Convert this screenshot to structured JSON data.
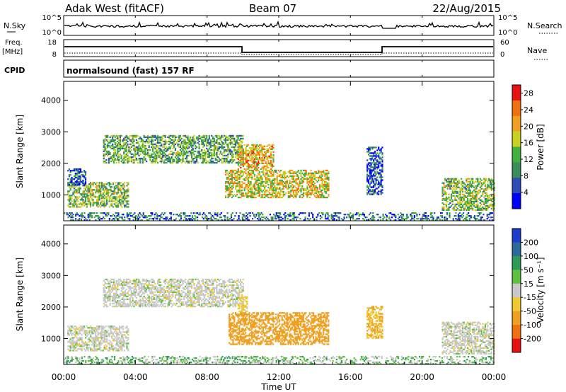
{
  "header": {
    "station": "Adak West (fitACF)",
    "beam": "Beam 07",
    "date": "22/Aug/2015"
  },
  "top_panels": {
    "nsky_label": "N.Sky",
    "nsearch_label": "N.Search",
    "nsky_ticks": [
      "10^5",
      "10^0"
    ],
    "freq_label_1": "Freq.",
    "freq_label_2": "[MHz]",
    "freq_ticks": [
      "18",
      "8"
    ],
    "nave_label": "Nave",
    "nave_ticks": [
      "60",
      "0"
    ],
    "cpid_label": "CPID",
    "cpid_value": "normalsound (fast) 157 RF"
  },
  "chart_data": [
    {
      "type": "heatmap",
      "name": "power",
      "ylabel": "Slant Range [km]",
      "xlabel": "Time UT",
      "x_ticks": [
        "00:00",
        "04:00",
        "08:00",
        "12:00",
        "16:00",
        "20:00",
        "00:00"
      ],
      "x_range_hours": [
        0,
        24
      ],
      "ylim": [
        180,
        4600
      ],
      "y_ticks": [
        1000,
        2000,
        3000,
        4000
      ],
      "colorbar": {
        "label": "Power [dB]",
        "ticks": [
          4,
          8,
          12,
          16,
          20,
          24,
          28
        ],
        "range": [
          0,
          30
        ],
        "colors": [
          "#0000ff",
          "#2c4cb8",
          "#3a8c5a",
          "#40b040",
          "#c8d020",
          "#f0a020",
          "#f07010",
          "#e81010"
        ]
      },
      "echo_regions": [
        {
          "t_start": 0.2,
          "t_end": 3.6,
          "range_start": 600,
          "range_end": 1400,
          "power_db": 14
        },
        {
          "t_start": 0.2,
          "t_end": 1.2,
          "range_start": 1300,
          "range_end": 1800,
          "power_db": 6
        },
        {
          "t_start": 2.2,
          "t_end": 10.0,
          "range_start": 2000,
          "range_end": 2900,
          "power_db": 12
        },
        {
          "t_start": 9.7,
          "t_end": 11.7,
          "range_start": 1800,
          "range_end": 2600,
          "power_db": 20
        },
        {
          "t_start": 9.0,
          "t_end": 14.8,
          "range_start": 900,
          "range_end": 1800,
          "power_db": 18
        },
        {
          "t_start": 16.9,
          "t_end": 17.8,
          "range_start": 1000,
          "range_end": 2500,
          "power_db": 6
        },
        {
          "t_start": 21.1,
          "t_end": 24.0,
          "range_start": 500,
          "range_end": 1500,
          "power_db": 14
        },
        {
          "t_start": 0.0,
          "t_end": 24.0,
          "range_start": 180,
          "range_end": 450,
          "power_db": 8
        }
      ]
    },
    {
      "type": "heatmap",
      "name": "velocity",
      "ylabel": "Slant Range [km]",
      "xlabel": "Time UT",
      "x_ticks": [
        "00:00",
        "04:00",
        "08:00",
        "12:00",
        "16:00",
        "20:00",
        "00:00"
      ],
      "x_range_hours": [
        0,
        24
      ],
      "ylim": [
        180,
        4600
      ],
      "y_ticks": [
        1000,
        2000,
        3000,
        4000
      ],
      "colorbar": {
        "label": "Velocity [m s⁻¹]",
        "ticks": [
          "200",
          "100",
          "50",
          "15",
          "-15",
          "-50",
          "-100",
          "-200"
        ],
        "colors": [
          "#1a3cc8",
          "#2a6a9a",
          "#2e9a5a",
          "#60c040",
          "#c8c8c8",
          "#f0c830",
          "#f0a020",
          "#f07010",
          "#e81010"
        ]
      },
      "echo_regions": [
        {
          "t_start": 0.2,
          "t_end": 3.6,
          "range_start": 600,
          "range_end": 1400,
          "velocity": 0
        },
        {
          "t_start": 2.2,
          "t_end": 10.0,
          "range_start": 2000,
          "range_end": 2900,
          "velocity": 0
        },
        {
          "t_start": 9.7,
          "t_end": 10.2,
          "range_start": 1800,
          "range_end": 2300,
          "velocity": -30
        },
        {
          "t_start": 9.2,
          "t_end": 14.8,
          "range_start": 800,
          "range_end": 1800,
          "velocity": -80
        },
        {
          "t_start": 16.9,
          "t_end": 17.8,
          "range_start": 1000,
          "range_end": 2000,
          "velocity": -50
        },
        {
          "t_start": 21.1,
          "t_end": 24.0,
          "range_start": 500,
          "range_end": 1500,
          "velocity": 0
        },
        {
          "t_start": 0.0,
          "t_end": 24.0,
          "range_start": 180,
          "range_end": 450,
          "velocity": 20
        }
      ]
    }
  ]
}
